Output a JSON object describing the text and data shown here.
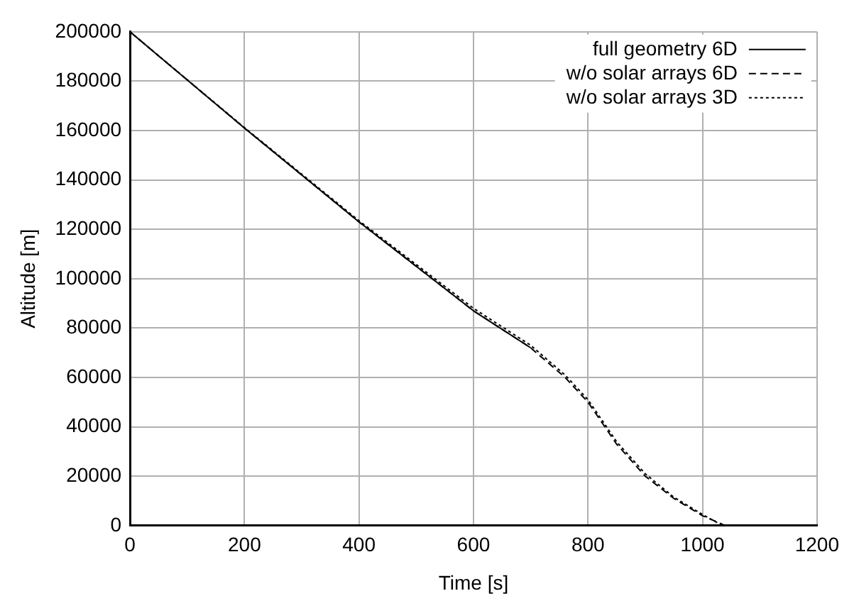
{
  "chart_data": {
    "type": "line",
    "xlabel": "Time [s]",
    "ylabel": "Altitude [m]",
    "xlim": [
      0,
      1200
    ],
    "xticks": [
      0,
      200,
      400,
      600,
      800,
      1000,
      1200
    ],
    "ylim": [
      0,
      200000
    ],
    "yticks": [
      0,
      20000,
      40000,
      60000,
      80000,
      100000,
      120000,
      140000,
      160000,
      180000,
      200000
    ],
    "grid": true,
    "legend": "top right",
    "marker": "none",
    "series": [
      {
        "name": "full geometry 6D",
        "color": "#000000",
        "line_style": "solid",
        "x": [
          0,
          200,
          400,
          600,
          700
        ],
        "values": [
          200000,
          161000,
          123000,
          87000,
          72000
        ]
      },
      {
        "name": "w/o solar arrays 6D",
        "color": "#000000",
        "line_style": "dashed",
        "x": [
          0,
          200,
          400,
          600,
          700,
          760,
          800,
          850,
          900,
          950,
          1000,
          1040
        ],
        "values": [
          200000,
          161000,
          123000,
          87000,
          72000,
          60000,
          50000,
          33000,
          20000,
          11000,
          4000,
          0
        ]
      },
      {
        "name": "w/o solar arrays 3D",
        "color": "#000000",
        "line_style": "dotted",
        "x": [
          0,
          200,
          400,
          600,
          700,
          760,
          800,
          850,
          900,
          950,
          1000,
          1035
        ],
        "values": [
          200000,
          161200,
          123500,
          88000,
          73000,
          61000,
          51000,
          34000,
          21000,
          11500,
          4500,
          0
        ]
      }
    ]
  }
}
